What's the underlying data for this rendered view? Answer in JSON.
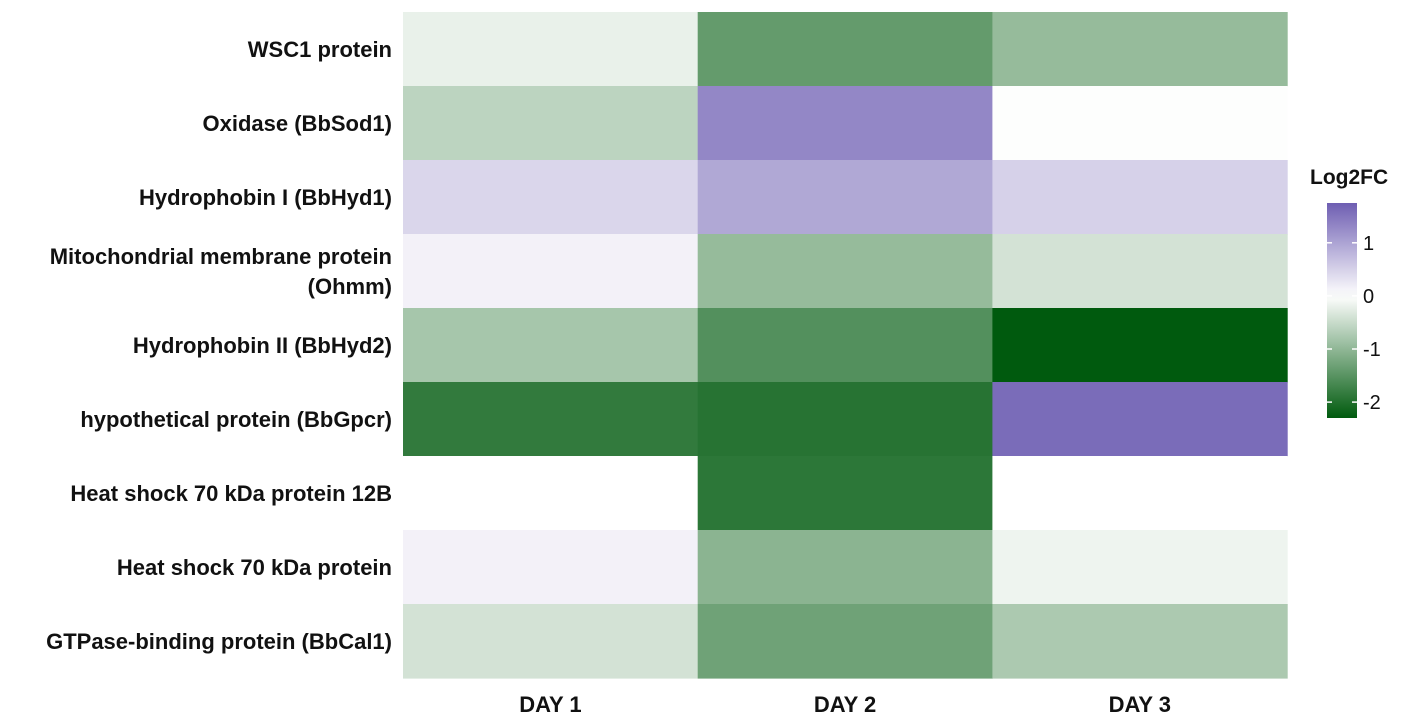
{
  "chart_data": {
    "type": "heatmap",
    "rows": [
      "WSC1 protein",
      "Oxidase (BbSod1)",
      "Hydrophobin I (BbHyd1)",
      "Mitochondrial membrane protein\n(Ohmm)",
      "Hydrophobin II  (BbHyd2)",
      "hypothetical protein (BbGpcr)",
      "Heat shock 70 kDa protein 12B",
      "Heat shock 70 kDa protein",
      "GTPase-binding protein (BbCal1)"
    ],
    "columns": [
      "DAY 1",
      "DAY 2",
      "DAY 3"
    ],
    "values": [
      [
        -0.2,
        -1.4,
        -0.95
      ],
      [
        -0.6,
        1.3,
        -0.02
      ],
      [
        0.45,
        0.95,
        0.5
      ],
      [
        0.15,
        -0.95,
        -0.4
      ],
      [
        -0.8,
        -1.55,
        -2.3
      ],
      [
        -1.85,
        -1.95,
        1.6
      ],
      [
        0.0,
        -1.9,
        0.0
      ],
      [
        0.15,
        -1.05,
        -0.15
      ],
      [
        -0.4,
        -1.3,
        -0.75
      ]
    ],
    "color_scale": {
      "min": -2.3,
      "mid": 0,
      "max": 1.75,
      "low_color": "#005a0e",
      "mid_color": "#ffffff",
      "high_color": "#6e5eb2"
    },
    "legend": {
      "title": "Log2FC",
      "ticks": [
        1,
        0,
        -1,
        -2
      ],
      "tick_labels": [
        "1",
        "0",
        "-1",
        "-2"
      ],
      "placement": "right"
    }
  }
}
